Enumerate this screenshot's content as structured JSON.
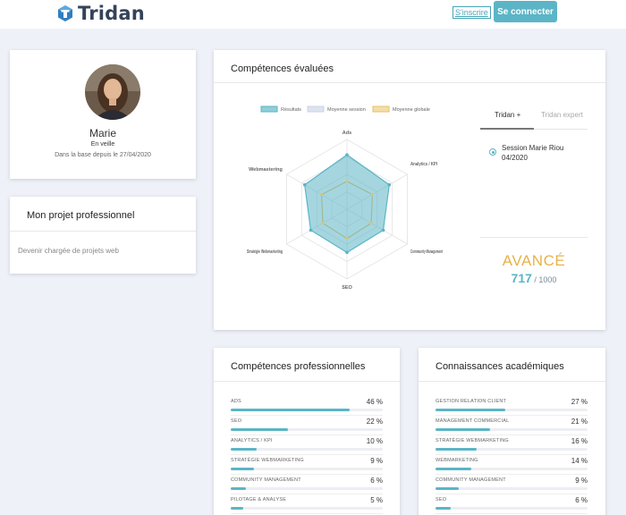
{
  "header": {
    "logo_text": "Tridan",
    "signup_label": "S'inscrire",
    "login_label": "Se connecter"
  },
  "profile": {
    "name": "Marie",
    "status": "En veille",
    "since": "Dans la base depuis le 27/04/2020"
  },
  "project": {
    "title": "Mon projet professionnel",
    "text": "Devenir chargée de projets web"
  },
  "evaluated": {
    "title": "Compétences évaluées",
    "legend": [
      "Résultats",
      "Moyenne session",
      "Moyenne globale"
    ],
    "axes": [
      "Ads",
      "Analytics / KPI",
      "Community Management",
      "SEO",
      "Stratégie Webmarketing",
      "Webmastering"
    ],
    "tabs": [
      "Tridan +",
      "Tridan expert"
    ],
    "session": "Session Marie Riou 04/2020",
    "level": "AVANCÉ",
    "score": "717",
    "score_max": " / 1000"
  },
  "chart_data": {
    "type": "radar",
    "axes": [
      "Ads",
      "Analytics / KPI",
      "Community Management",
      "SEO",
      "Stratégie Webmarketing",
      "Webmastering"
    ],
    "series": [
      {
        "name": "Résultats",
        "values": [
          0.78,
          0.7,
          0.6,
          0.62,
          0.6,
          0.7
        ]
      },
      {
        "name": "Moyenne session",
        "values": [
          0,
          0,
          0,
          0,
          0,
          0
        ]
      },
      {
        "name": "Moyenne globale",
        "values": [
          0.4,
          0.42,
          0.4,
          0.42,
          0.4,
          0.42
        ]
      }
    ],
    "colors": {
      "results": "#5bb5c6",
      "session": "#c9d3e6",
      "global": "#e7c168"
    }
  },
  "professional": {
    "title": "Compétences professionnelles",
    "items": [
      {
        "name": "ADS",
        "pct": "46 %",
        "value": 46
      },
      {
        "name": "SEO",
        "pct": "22 %",
        "value": 22
      },
      {
        "name": "ANALYTICS / KPI",
        "pct": "10 %",
        "value": 10
      },
      {
        "name": "STRATÉGIE WEBMARKETING",
        "pct": "9 %",
        "value": 9
      },
      {
        "name": "COMMUNITY MANAGEMENT",
        "pct": "6 %",
        "value": 6
      },
      {
        "name": "PILOTAGE & ANALYSE",
        "pct": "5 %",
        "value": 5
      }
    ]
  },
  "academic": {
    "title": "Connaissances académiques",
    "items": [
      {
        "name": "GESTION RELATION CLIENT",
        "pct": "27 %",
        "value": 27
      },
      {
        "name": "MANAGEMENT COMMERCIAL",
        "pct": "21 %",
        "value": 21
      },
      {
        "name": "STRATÉGIE WEBMARKETING",
        "pct": "16 %",
        "value": 16
      },
      {
        "name": "WEBMARKETING",
        "pct": "14 %",
        "value": 14
      },
      {
        "name": "COMMUNITY MANAGEMENT",
        "pct": "9 %",
        "value": 9
      },
      {
        "name": "SEO",
        "pct": "6 %",
        "value": 6
      }
    ]
  }
}
